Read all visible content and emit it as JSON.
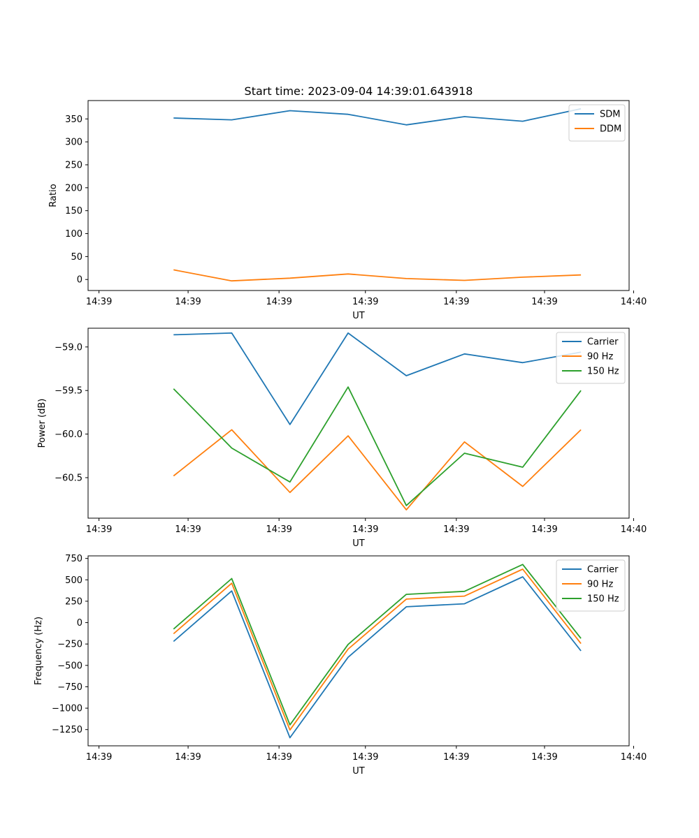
{
  "chart_data": [
    {
      "type": "line",
      "title": "Start time: 2023-09-04 14:39:01.643918",
      "xlabel": "UT",
      "ylabel": "Ratio",
      "x": [
        0.94,
        1.58,
        2.22,
        2.86,
        3.5,
        4.14,
        4.78,
        5.42
      ],
      "xlim": [
        0,
        5.95
      ],
      "x_ticks": [
        0.12,
        1.1,
        2.1,
        3.05,
        4.05,
        5.02,
        6.0
      ],
      "x_tick_labels": [
        "14:39",
        "14:39",
        "14:39",
        "14:39",
        "14:39",
        "14:39",
        "14:40"
      ],
      "ylim": [
        -24,
        390
      ],
      "y_ticks": [
        0,
        50,
        100,
        150,
        200,
        250,
        300,
        350
      ],
      "y_tick_labels": [
        "0",
        "50",
        "100",
        "150",
        "200",
        "250",
        "300",
        "350"
      ],
      "legend_position": "top-right",
      "series": [
        {
          "name": "SDM",
          "color": "#1f77b4",
          "values": [
            352,
            348,
            368,
            360,
            337,
            355,
            345,
            372
          ]
        },
        {
          "name": "DDM",
          "color": "#ff7f0e",
          "values": [
            21,
            -3,
            3,
            12,
            2,
            -2,
            5,
            10
          ]
        }
      ]
    },
    {
      "type": "line",
      "title": "",
      "xlabel": "UT",
      "ylabel": "Power (dB)",
      "x": [
        0.94,
        1.58,
        2.22,
        2.86,
        3.5,
        4.14,
        4.78,
        5.42
      ],
      "xlim": [
        0,
        5.95
      ],
      "x_ticks": [
        0.12,
        1.1,
        2.1,
        3.05,
        4.05,
        5.02,
        6.0
      ],
      "x_tick_labels": [
        "14:39",
        "14:39",
        "14:39",
        "14:39",
        "14:39",
        "14:39",
        "14:40"
      ],
      "ylim": [
        -60.965,
        -58.785
      ],
      "y_ticks": [
        -60.5,
        -60.0,
        -59.5,
        -59.0
      ],
      "y_tick_labels": [
        "−60.5",
        "−60.0",
        "−59.5",
        "−59.0"
      ],
      "legend_position": "top-right",
      "series": [
        {
          "name": "Carrier",
          "color": "#1f77b4",
          "values": [
            -58.86,
            -58.84,
            -59.89,
            -58.84,
            -59.33,
            -59.08,
            -59.18,
            -59.06
          ]
        },
        {
          "name": "90 Hz",
          "color": "#ff7f0e",
          "values": [
            -60.48,
            -59.95,
            -60.67,
            -60.02,
            -60.87,
            -60.09,
            -60.6,
            -59.95
          ]
        },
        {
          "name": "150 Hz",
          "color": "#2ca02c",
          "values": [
            -59.48,
            -60.16,
            -60.55,
            -59.46,
            -60.82,
            -60.22,
            -60.38,
            -59.5
          ]
        }
      ]
    },
    {
      "type": "line",
      "title": "",
      "xlabel": "UT",
      "ylabel": "Frequency (Hz)",
      "x": [
        0.94,
        1.58,
        2.22,
        2.86,
        3.5,
        4.14,
        4.78,
        5.42
      ],
      "xlim": [
        0,
        5.95
      ],
      "x_ticks": [
        0.12,
        1.1,
        2.1,
        3.05,
        4.05,
        5.02,
        6.0
      ],
      "x_tick_labels": [
        "14:39",
        "14:39",
        "14:39",
        "14:39",
        "14:39",
        "14:39",
        "14:40"
      ],
      "ylim": [
        -1440,
        780
      ],
      "y_ticks": [
        -1250,
        -1000,
        -750,
        -500,
        -250,
        0,
        250,
        500,
        750
      ],
      "y_tick_labels": [
        "−1250",
        "−1000",
        "−750",
        "−500",
        "−250",
        "0",
        "250",
        "500",
        "750"
      ],
      "legend_position": "top-right",
      "series": [
        {
          "name": "Carrier",
          "color": "#1f77b4",
          "values": [
            -220,
            370,
            -1345,
            -405,
            185,
            220,
            535,
            -330
          ]
        },
        {
          "name": "90 Hz",
          "color": "#ff7f0e",
          "values": [
            -130,
            460,
            -1255,
            -310,
            275,
            310,
            625,
            -245
          ]
        },
        {
          "name": "150 Hz",
          "color": "#2ca02c",
          "values": [
            -75,
            515,
            -1195,
            -255,
            330,
            365,
            680,
            -185
          ]
        }
      ]
    }
  ]
}
